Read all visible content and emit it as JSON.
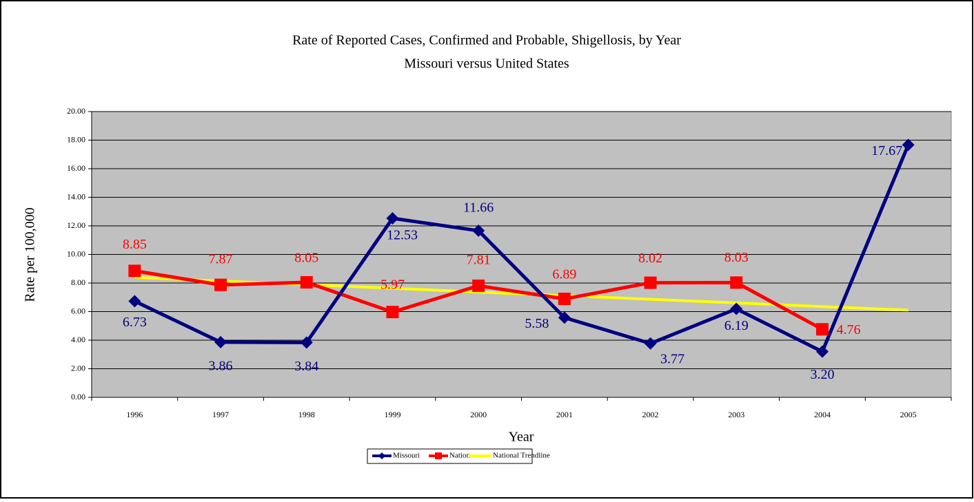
{
  "chart_data": {
    "type": "line",
    "title": "Rate of Reported Cases, Confirmed and Probable, Shigellosis, by Year",
    "subtitle": "Missouri versus United States",
    "x_label": "Year",
    "y_label": "Rate per 100,000",
    "categories": [
      "1996",
      "1997",
      "1998",
      "1999",
      "2000",
      "2001",
      "2002",
      "2003",
      "2004",
      "2005"
    ],
    "series": [
      {
        "name": "Missouri",
        "color": "#000080",
        "marker": "diamond",
        "values": [
          6.73,
          3.86,
          3.84,
          12.53,
          11.66,
          5.58,
          3.77,
          6.19,
          3.2,
          17.67
        ],
        "value_labels": [
          "6.73",
          "3.86",
          "3.84",
          "12.53",
          "11.66",
          "5.58",
          "3.77",
          "6.19",
          "3.20",
          "17.67"
        ]
      },
      {
        "name": "Nation",
        "color": "#ff0000",
        "marker": "square",
        "values": [
          8.85,
          7.87,
          8.05,
          5.97,
          7.81,
          6.89,
          8.02,
          8.03,
          4.76,
          null
        ],
        "value_labels": [
          "8.85",
          "7.87",
          "8.05",
          "5.97",
          "7.81",
          "6.89",
          "8.02",
          "8.03",
          "4.76",
          null
        ]
      },
      {
        "name": "National Trendline",
        "color": "#ffff00",
        "marker": "none",
        "values": [
          8.4,
          8.14,
          7.89,
          7.63,
          7.37,
          7.12,
          6.86,
          6.61,
          6.35,
          6.1
        ]
      }
    ],
    "ylim": [
      0,
      20
    ],
    "yticks": [
      {
        "value": 0,
        "label": "0.00"
      },
      {
        "value": 2,
        "label": "2.00"
      },
      {
        "value": 4,
        "label": "4.00"
      },
      {
        "value": 6,
        "label": "6.00"
      },
      {
        "value": 8,
        "label": "8.00"
      },
      {
        "value": 10,
        "label": "10.00"
      },
      {
        "value": 12,
        "label": "12.00"
      },
      {
        "value": 14,
        "label": "14.00"
      },
      {
        "value": 16,
        "label": "16.00"
      },
      {
        "value": 18,
        "label": "18.00"
      },
      {
        "value": 20,
        "label": "20.00"
      }
    ],
    "grid": true,
    "background": "#c0c0c0",
    "legend": "bottom"
  }
}
